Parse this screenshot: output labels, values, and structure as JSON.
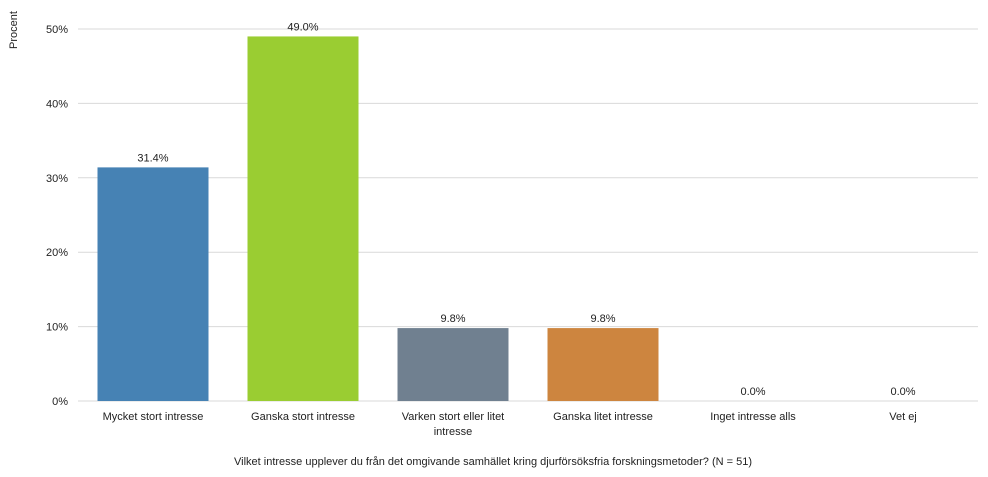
{
  "chart_data": {
    "type": "bar",
    "ylabel": "Procent",
    "xlabel": "Vilket intresse upplever du från det omgivande samhället kring djurförsöksfria forskningsmetoder?  (N = 51)",
    "categories": [
      [
        "Mycket stort intresse"
      ],
      [
        "Ganska stort intresse"
      ],
      [
        "Varken stort eller litet",
        "intresse"
      ],
      [
        "Ganska litet intresse"
      ],
      [
        "Inget intresse alls"
      ],
      [
        "Vet ej"
      ]
    ],
    "values": [
      31.4,
      49.0,
      9.8,
      9.8,
      0.0,
      0.0
    ],
    "value_labels": [
      "31.4%",
      "49.0%",
      "9.8%",
      "9.8%",
      "0.0%",
      "0.0%"
    ],
    "colors": [
      "#4682b4",
      "#9acd32",
      "#708090",
      "#cd853f",
      "#708090",
      "#708090"
    ],
    "ylim": [
      0,
      50
    ],
    "yticks": [
      0,
      10,
      20,
      30,
      40,
      50
    ],
    "ytick_labels": [
      "0%",
      "10%",
      "20%",
      "30%",
      "40%",
      "50%"
    ],
    "grid": true,
    "gridline_color": "#d9d9d9"
  }
}
